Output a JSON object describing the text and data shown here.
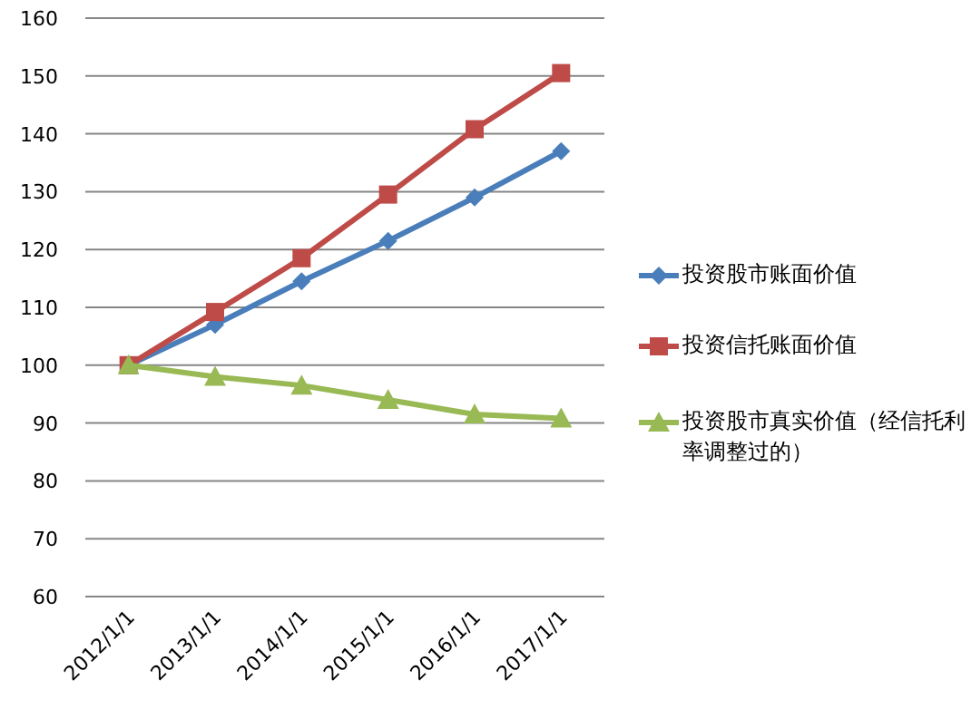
{
  "chart_data": {
    "type": "line",
    "categories": [
      "2012/1/1",
      "2013/1/1",
      "2014/1/1",
      "2015/1/1",
      "2016/1/1",
      "2017/1/1"
    ],
    "series": [
      {
        "name": "投资股市账面价值",
        "color": "#4a7ebb",
        "marker": "diamond",
        "values": [
          100,
          107,
          114.5,
          121.5,
          129,
          137
        ]
      },
      {
        "name": "投资信托账面价值",
        "color": "#be4b48",
        "marker": "square",
        "values": [
          100,
          109.2,
          118.5,
          129.5,
          140.8,
          150.5
        ]
      },
      {
        "name": "投资股市真实价值（经信托利率调整过的）",
        "color": "#98b954",
        "marker": "triangle",
        "values": [
          100,
          98,
          96.5,
          94,
          91.5,
          90.8
        ]
      }
    ],
    "ylim": [
      60,
      160
    ],
    "yticks": [
      60,
      70,
      80,
      90,
      100,
      110,
      120,
      130,
      140,
      150,
      160
    ],
    "grid": "y",
    "legend": "right",
    "line_style": "solid"
  }
}
